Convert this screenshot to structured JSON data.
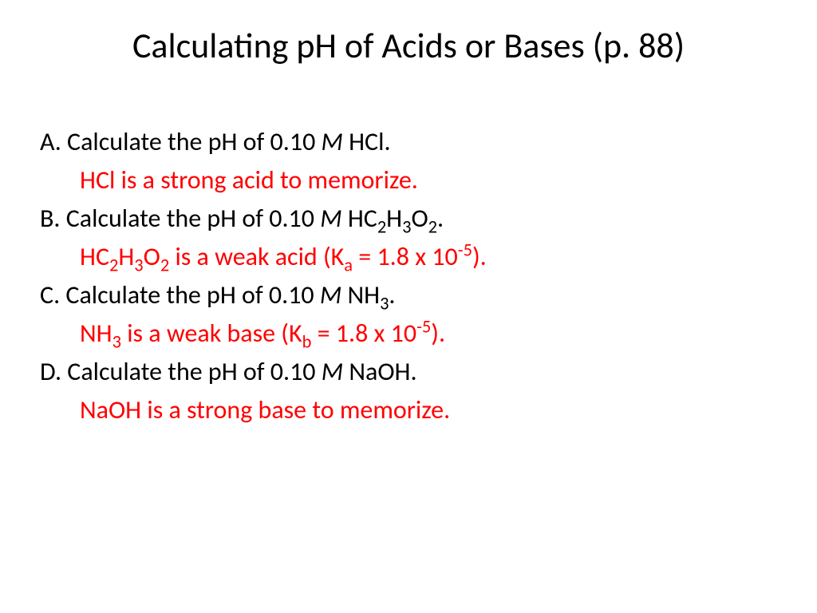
{
  "title": "Calculating pH of Acids or Bases (p. 88)",
  "concentration": "0.10",
  "items": {
    "a": {
      "label": "A.",
      "prompt_prefix": "Calculate the pH of 0.10 ",
      "unit": "M",
      "formula_plain": " HCl.",
      "answer_plain": "HCl is a strong acid to memorize."
    },
    "b": {
      "label": "B.",
      "prompt_prefix": "Calculate the pH of 0.10 ",
      "unit": "M",
      "formula_pre": " HC",
      "sub1": "2",
      "mid1": "H",
      "sub2": "3",
      "mid2": "O",
      "sub3": "2",
      "tail": ".",
      "answer_pre": "HC",
      "a_sub1": "2",
      "a_mid1": "H",
      "a_sub2": "3",
      "a_mid2": "O",
      "a_sub3": "2",
      "a_text1": " is a weak acid (K",
      "a_ksub": "a",
      "a_text2": " = 1.8 x 10",
      "a_exp": "-5",
      "a_text3": ")."
    },
    "c": {
      "label": "C.",
      "prompt_prefix": "Calculate the pH of 0.10 ",
      "unit": "M",
      "formula_pre": " NH",
      "sub1": "3",
      "tail": ".",
      "answer_pre": "NH",
      "a_sub1": "3",
      "a_text1": " is a weak base (K",
      "a_ksub": "b",
      "a_text2": " = 1.8 x 10",
      "a_exp": "-5",
      "a_text3": ")."
    },
    "d": {
      "label": "D.",
      "prompt_prefix": "Calculate the pH of 0.10 ",
      "unit": "M",
      "formula_plain": " NaOH.",
      "answer_plain": "NaOH is a strong base to memorize."
    }
  },
  "colors": {
    "text": "#000000",
    "highlight": "#ff0000",
    "background": "#ffffff"
  }
}
